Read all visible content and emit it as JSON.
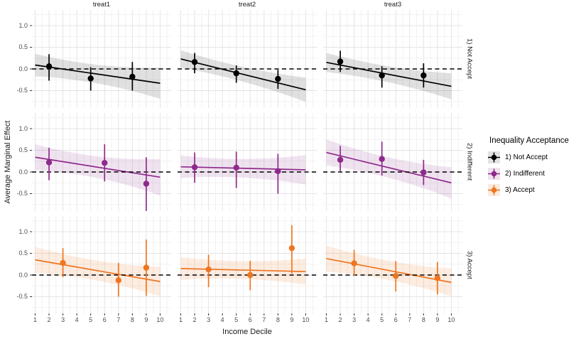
{
  "chart_data": {
    "type": "scatter",
    "subtype": "faceted point-range estimates with linear fit and confidence band",
    "facet_cols": [
      "treat1",
      "treat2",
      "treat3"
    ],
    "facet_rows": [
      "1) Not Accept",
      "2) Indifferent",
      "3) Accept"
    ],
    "xlabel": "Income Decile",
    "ylabel": "Average Marginal Effect",
    "x_ticks": [
      "1",
      "2",
      "3",
      "4",
      "5",
      "6",
      "7",
      "8",
      "9",
      "10"
    ],
    "y_ticks": [
      "1.0",
      "0.5",
      "0.0",
      "-0.5"
    ],
    "y_tick_values": [
      1.0,
      0.5,
      0.0,
      -0.5
    ],
    "ylim": [
      -0.9,
      1.36
    ],
    "xlim": [
      0.77,
      10.8
    ],
    "grid": true,
    "legend_position": "right",
    "zero_line": {
      "y": 0,
      "style": "dashed",
      "color": "#000000"
    },
    "groups": [
      {
        "name": "1) Not Accept",
        "color": "#000000",
        "band_color": "rgba(0,0,0,0.12)",
        "key_bg": "#E3E3E3"
      },
      {
        "name": "2) Indifferent",
        "color": "#8E2A8C",
        "band_color": "rgba(142,42,140,0.13)",
        "key_bg": "#EFE3EE"
      },
      {
        "name": "3) Accept",
        "color": "#EE7621",
        "band_color": "rgba(238,118,33,0.14)",
        "key_bg": "#FCEBDE"
      }
    ],
    "panels": [
      {
        "row": 0,
        "col": 0,
        "group": 0,
        "points": [
          {
            "x": 2,
            "y": 0.06,
            "lo": -0.27,
            "hi": 0.34
          },
          {
            "x": 5,
            "y": -0.22,
            "lo": -0.5,
            "hi": 0.04
          },
          {
            "x": 8,
            "y": -0.18,
            "lo": -0.5,
            "hi": 0.16
          }
        ],
        "line": {
          "x1": 1,
          "y1": 0.09,
          "x2": 10,
          "y2": -0.33
        },
        "band": {
          "left": 0.26,
          "mid": 0.12,
          "right": 0.36
        }
      },
      {
        "row": 0,
        "col": 1,
        "group": 0,
        "points": [
          {
            "x": 2,
            "y": 0.16,
            "lo": -0.1,
            "hi": 0.37
          },
          {
            "x": 5,
            "y": -0.1,
            "lo": -0.32,
            "hi": 0.08
          },
          {
            "x": 8,
            "y": -0.23,
            "lo": -0.46,
            "hi": -0.02
          }
        ],
        "line": {
          "x1": 1,
          "y1": 0.23,
          "x2": 10,
          "y2": -0.48
        },
        "band": {
          "left": 0.2,
          "mid": 0.1,
          "right": 0.28
        }
      },
      {
        "row": 0,
        "col": 2,
        "group": 0,
        "points": [
          {
            "x": 2,
            "y": 0.17,
            "lo": -0.07,
            "hi": 0.42
          },
          {
            "x": 5,
            "y": -0.15,
            "lo": -0.43,
            "hi": 0.06
          },
          {
            "x": 8,
            "y": -0.15,
            "lo": -0.43,
            "hi": 0.13
          }
        ],
        "line": {
          "x1": 1,
          "y1": 0.15,
          "x2": 10,
          "y2": -0.4
        },
        "band": {
          "left": 0.22,
          "mid": 0.11,
          "right": 0.3
        }
      },
      {
        "row": 1,
        "col": 0,
        "group": 1,
        "points": [
          {
            "x": 2,
            "y": 0.22,
            "lo": -0.19,
            "hi": 0.56
          },
          {
            "x": 6,
            "y": 0.21,
            "lo": -0.22,
            "hi": 0.64
          },
          {
            "x": 9,
            "y": -0.27,
            "lo": -0.9,
            "hi": 0.34
          }
        ],
        "line": {
          "x1": 1,
          "y1": 0.34,
          "x2": 10,
          "y2": -0.12
        },
        "band": {
          "left": 0.3,
          "mid": 0.14,
          "right": 0.42
        }
      },
      {
        "row": 1,
        "col": 1,
        "group": 1,
        "points": [
          {
            "x": 2,
            "y": 0.11,
            "lo": -0.25,
            "hi": 0.45
          },
          {
            "x": 5,
            "y": 0.1,
            "lo": -0.37,
            "hi": 0.47
          },
          {
            "x": 8,
            "y": 0.02,
            "lo": -0.5,
            "hi": 0.42
          }
        ],
        "line": {
          "x1": 1,
          "y1": 0.12,
          "x2": 10,
          "y2": 0.05
        },
        "band": {
          "left": 0.26,
          "mid": 0.13,
          "right": 0.34
        }
      },
      {
        "row": 1,
        "col": 2,
        "group": 1,
        "points": [
          {
            "x": 2,
            "y": 0.28,
            "lo": 0.02,
            "hi": 0.6
          },
          {
            "x": 5,
            "y": 0.3,
            "lo": -0.08,
            "hi": 0.7
          },
          {
            "x": 8,
            "y": -0.01,
            "lo": -0.3,
            "hi": 0.28
          }
        ],
        "line": {
          "x1": 1,
          "y1": 0.45,
          "x2": 10,
          "y2": -0.25
        },
        "band": {
          "left": 0.3,
          "mid": 0.14,
          "right": 0.36
        }
      },
      {
        "row": 2,
        "col": 0,
        "group": 2,
        "points": [
          {
            "x": 3,
            "y": 0.28,
            "lo": -0.05,
            "hi": 0.62
          },
          {
            "x": 7,
            "y": -0.12,
            "lo": -0.5,
            "hi": 0.28
          },
          {
            "x": 9,
            "y": 0.17,
            "lo": -0.48,
            "hi": 0.82
          }
        ],
        "line": {
          "x1": 1,
          "y1": 0.35,
          "x2": 10,
          "y2": -0.15
        },
        "band": {
          "left": 0.3,
          "mid": 0.14,
          "right": 0.34
        }
      },
      {
        "row": 2,
        "col": 1,
        "group": 2,
        "points": [
          {
            "x": 3,
            "y": 0.13,
            "lo": -0.28,
            "hi": 0.47
          },
          {
            "x": 6,
            "y": 0.0,
            "lo": -0.35,
            "hi": 0.33
          },
          {
            "x": 9,
            "y": 0.62,
            "lo": 0.03,
            "hi": 1.15
          }
        ],
        "line": {
          "x1": 1,
          "y1": 0.15,
          "x2": 10,
          "y2": 0.08
        },
        "band": {
          "left": 0.26,
          "mid": 0.13,
          "right": 0.3
        }
      },
      {
        "row": 2,
        "col": 2,
        "group": 2,
        "points": [
          {
            "x": 3,
            "y": 0.27,
            "lo": -0.02,
            "hi": 0.58
          },
          {
            "x": 6,
            "y": -0.02,
            "lo": -0.38,
            "hi": 0.32
          },
          {
            "x": 9,
            "y": -0.07,
            "lo": -0.45,
            "hi": 0.3
          }
        ],
        "line": {
          "x1": 1,
          "y1": 0.38,
          "x2": 10,
          "y2": -0.17
        },
        "band": {
          "left": 0.3,
          "mid": 0.13,
          "right": 0.32
        }
      }
    ]
  },
  "legend": {
    "title": "Inequality Acceptance",
    "items": [
      "1) Not Accept",
      "2) Indifferent",
      "3) Accept"
    ]
  },
  "style": {
    "grid_major": "#E4E4E4",
    "grid_minor": "#F1F1F1",
    "tick_color": "#333333",
    "tick_label_color": "#4d4d4d"
  }
}
